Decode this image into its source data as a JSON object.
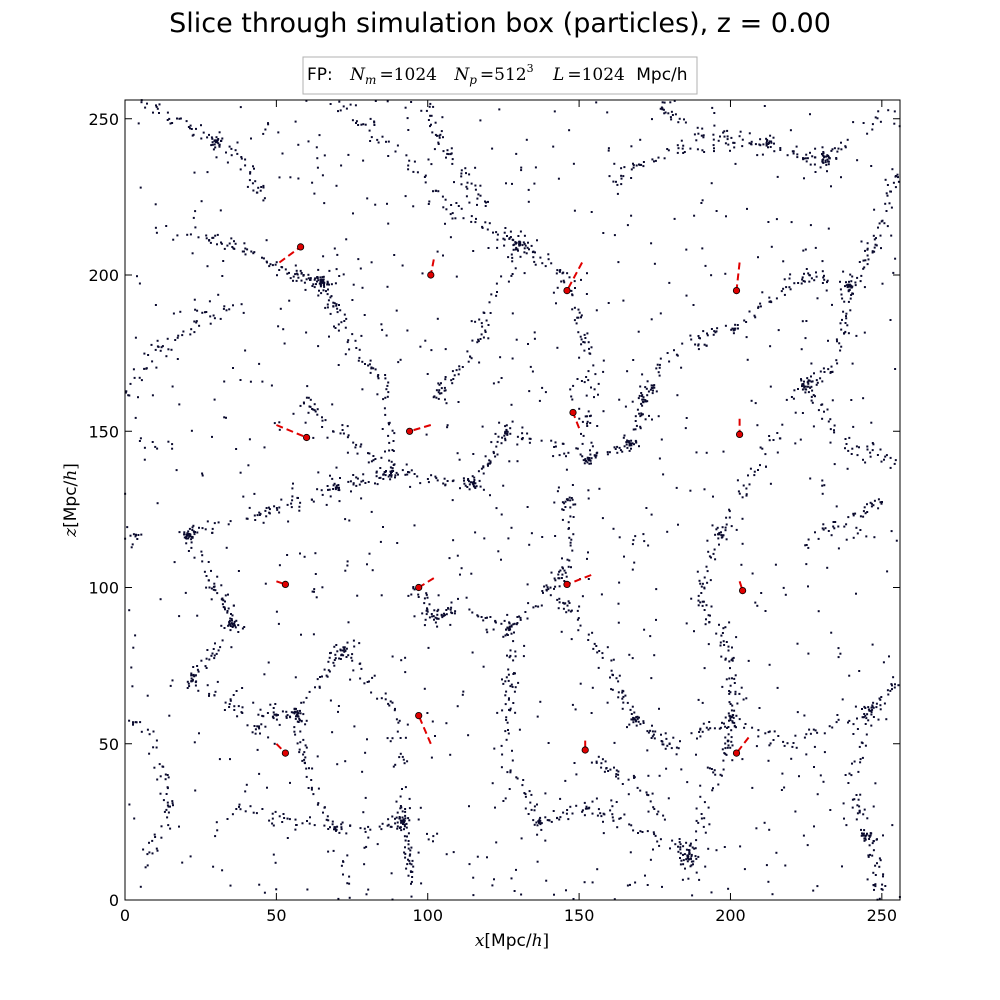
{
  "chart_data": {
    "type": "scatter",
    "title": "Slice through simulation box (particles), z = 0.00",
    "legend": {
      "placement": "top-center",
      "label": "FP:",
      "parts": {
        "nm_symbol": "N",
        "nm_sub": "m",
        "nm_value": "=1024",
        "np_symbol": "N",
        "np_sub": "p",
        "np_value": "=512",
        "np_exp": "3",
        "l_symbol": "L",
        "l_value": "=1024",
        "l_unit": "Mpc/h"
      }
    },
    "xlabel": {
      "var": "x",
      "text": "[Mpc/",
      "h": "h",
      "close": "]"
    },
    "ylabel": {
      "var": "z",
      "text": "[Mpc/",
      "h": "h",
      "close": "]"
    },
    "xlim": [
      0,
      256
    ],
    "ylim": [
      0,
      256
    ],
    "xticks": [
      "0",
      "50",
      "100",
      "150",
      "200",
      "250"
    ],
    "yticks": [
      "0",
      "50",
      "100",
      "150",
      "200",
      "250"
    ],
    "grid": false,
    "colors": {
      "particles": "#0a0a2e",
      "halos": "#e00000",
      "halo_edge": "#000000"
    },
    "particle_clusters": [
      {
        "x": 30,
        "y": 243,
        "n": 30,
        "s": 3.5
      },
      {
        "x": 65,
        "y": 198,
        "n": 45,
        "s": 4
      },
      {
        "x": 130,
        "y": 210,
        "n": 30,
        "s": 5
      },
      {
        "x": 21,
        "y": 117,
        "n": 30,
        "s": 2.5
      },
      {
        "x": 153,
        "y": 141,
        "n": 15,
        "s": 1.5
      },
      {
        "x": 186,
        "y": 14,
        "n": 45,
        "s": 6
      },
      {
        "x": 92,
        "y": 25,
        "n": 35,
        "s": 4
      },
      {
        "x": 57,
        "y": 59,
        "n": 25,
        "s": 4
      },
      {
        "x": 245,
        "y": 20,
        "n": 20,
        "s": 4
      },
      {
        "x": 168,
        "y": 58,
        "n": 15,
        "s": 3
      },
      {
        "x": 240,
        "y": 196,
        "n": 25,
        "s": 4
      },
      {
        "x": 88,
        "y": 137,
        "n": 20,
        "s": 3
      },
      {
        "x": 115,
        "y": 133,
        "n": 20,
        "s": 4
      },
      {
        "x": 126,
        "y": 150,
        "n": 15,
        "s": 3
      },
      {
        "x": 167,
        "y": 146,
        "n": 20,
        "s": 3
      },
      {
        "x": 36,
        "y": 88,
        "n": 20,
        "s": 3
      },
      {
        "x": 72,
        "y": 80,
        "n": 20,
        "s": 3
      },
      {
        "x": 127,
        "y": 87,
        "n": 15,
        "s": 3
      },
      {
        "x": 196,
        "y": 117,
        "n": 15,
        "s": 3
      },
      {
        "x": 212,
        "y": 242,
        "n": 12,
        "s": 3
      },
      {
        "x": 171,
        "y": 160,
        "n": 15,
        "s": 3
      },
      {
        "x": 22,
        "y": 70,
        "n": 15,
        "s": 4
      },
      {
        "x": 201,
        "y": 58,
        "n": 15,
        "s": 4
      },
      {
        "x": 147,
        "y": 128,
        "n": 15,
        "s": 4
      },
      {
        "x": 232,
        "y": 238,
        "n": 15,
        "s": 4
      },
      {
        "x": 246,
        "y": 60,
        "n": 12,
        "s": 3
      },
      {
        "x": 104,
        "y": 162,
        "n": 12,
        "s": 3
      },
      {
        "x": 70,
        "y": 132,
        "n": 12,
        "s": 3
      },
      {
        "x": 103,
        "y": 90,
        "n": 12,
        "s": 3
      },
      {
        "x": 224,
        "y": 165,
        "n": 12,
        "s": 3
      },
      {
        "x": 44,
        "y": 55,
        "n": 12,
        "s": 3
      },
      {
        "x": 137,
        "y": 25,
        "n": 12,
        "s": 3
      },
      {
        "x": 4,
        "y": 117,
        "n": 10,
        "s": 3
      }
    ],
    "particle_filaments": [
      {
        "pts": [
          [
            10,
            215
          ],
          [
            35,
            210
          ],
          [
            55,
            200
          ],
          [
            65,
            198
          ]
        ],
        "n": 80
      },
      {
        "pts": [
          [
            65,
            198
          ],
          [
            75,
            180
          ],
          [
            85,
            165
          ],
          [
            88,
            137
          ]
        ],
        "n": 80
      },
      {
        "pts": [
          [
            88,
            137
          ],
          [
            70,
            132
          ],
          [
            50,
            125
          ],
          [
            21,
            117
          ]
        ],
        "n": 80
      },
      {
        "pts": [
          [
            21,
            117
          ],
          [
            30,
            100
          ],
          [
            36,
            88
          ],
          [
            22,
            70
          ]
        ],
        "n": 70
      },
      {
        "pts": [
          [
            22,
            70
          ],
          [
            40,
            60
          ],
          [
            57,
            59
          ],
          [
            72,
            80
          ]
        ],
        "n": 70
      },
      {
        "pts": [
          [
            72,
            80
          ],
          [
            90,
            60
          ],
          [
            92,
            25
          ],
          [
            95,
            5
          ]
        ],
        "n": 80
      },
      {
        "pts": [
          [
            57,
            59
          ],
          [
            60,
            40
          ],
          [
            70,
            20
          ],
          [
            75,
            0
          ]
        ],
        "n": 60
      },
      {
        "pts": [
          [
            88,
            137
          ],
          [
            115,
            133
          ],
          [
            126,
            150
          ],
          [
            153,
            141
          ]
        ],
        "n": 80
      },
      {
        "pts": [
          [
            153,
            141
          ],
          [
            167,
            146
          ],
          [
            171,
            160
          ],
          [
            180,
            175
          ]
        ],
        "n": 70
      },
      {
        "pts": [
          [
            130,
            210
          ],
          [
            145,
            200
          ],
          [
            153,
            175
          ],
          [
            153,
            141
          ]
        ],
        "n": 80
      },
      {
        "pts": [
          [
            130,
            210
          ],
          [
            110,
            220
          ],
          [
            90,
            240
          ],
          [
            70,
            256
          ]
        ],
        "n": 70
      },
      {
        "pts": [
          [
            180,
            175
          ],
          [
            205,
            185
          ],
          [
            225,
            200
          ],
          [
            240,
            196
          ]
        ],
        "n": 80
      },
      {
        "pts": [
          [
            240,
            196
          ],
          [
            250,
            215
          ],
          [
            255,
            235
          ]
        ],
        "n": 50
      },
      {
        "pts": [
          [
            240,
            196
          ],
          [
            235,
            170
          ],
          [
            224,
            165
          ],
          [
            210,
            140
          ]
        ],
        "n": 70
      },
      {
        "pts": [
          [
            210,
            140
          ],
          [
            196,
            117
          ],
          [
            190,
            95
          ],
          [
            200,
            80
          ]
        ],
        "n": 70
      },
      {
        "pts": [
          [
            200,
            80
          ],
          [
            201,
            58
          ],
          [
            196,
            40
          ],
          [
            186,
            14
          ]
        ],
        "n": 80
      },
      {
        "pts": [
          [
            186,
            14
          ],
          [
            165,
            25
          ],
          [
            150,
            30
          ],
          [
            137,
            25
          ]
        ],
        "n": 60
      },
      {
        "pts": [
          [
            137,
            25
          ],
          [
            125,
            45
          ],
          [
            127,
            65
          ],
          [
            127,
            87
          ]
        ],
        "n": 70
      },
      {
        "pts": [
          [
            127,
            87
          ],
          [
            140,
            100
          ],
          [
            147,
            110
          ],
          [
            147,
            128
          ]
        ],
        "n": 60
      },
      {
        "pts": [
          [
            127,
            87
          ],
          [
            110,
            95
          ],
          [
            103,
            90
          ],
          [
            95,
            100
          ]
        ],
        "n": 50
      },
      {
        "pts": [
          [
            168,
            58
          ],
          [
            180,
            50
          ],
          [
            201,
            58
          ]
        ],
        "n": 50
      },
      {
        "pts": [
          [
            168,
            58
          ],
          [
            160,
            75
          ],
          [
            150,
            90
          ],
          [
            140,
            100
          ]
        ],
        "n": 50
      },
      {
        "pts": [
          [
            201,
            58
          ],
          [
            220,
            50
          ],
          [
            246,
            60
          ],
          [
            256,
            70
          ]
        ],
        "n": 60
      },
      {
        "pts": [
          [
            246,
            60
          ],
          [
            240,
            40
          ],
          [
            245,
            20
          ],
          [
            250,
            0
          ]
        ],
        "n": 60
      },
      {
        "pts": [
          [
            220,
            110
          ],
          [
            235,
            120
          ],
          [
            250,
            128
          ]
        ],
        "n": 40
      },
      {
        "pts": [
          [
            224,
            165
          ],
          [
            240,
            145
          ],
          [
            255,
            140
          ]
        ],
        "n": 45
      },
      {
        "pts": [
          [
            212,
            242
          ],
          [
            230,
            235
          ],
          [
            232,
            238
          ],
          [
            250,
            250
          ]
        ],
        "n": 60
      },
      {
        "pts": [
          [
            160,
            230
          ],
          [
            180,
            240
          ],
          [
            212,
            242
          ]
        ],
        "n": 55
      },
      {
        "pts": [
          [
            30,
            243
          ],
          [
            15,
            250
          ],
          [
            5,
            256
          ]
        ],
        "n": 30
      },
      {
        "pts": [
          [
            30,
            243
          ],
          [
            40,
            235
          ],
          [
            45,
            225
          ]
        ],
        "n": 30
      },
      {
        "pts": [
          [
            0,
            160
          ],
          [
            10,
            175
          ],
          [
            25,
            185
          ],
          [
            35,
            190
          ]
        ],
        "n": 50
      },
      {
        "pts": [
          [
            0,
            60
          ],
          [
            10,
            50
          ],
          [
            15,
            30
          ],
          [
            5,
            10
          ]
        ],
        "n": 50
      },
      {
        "pts": [
          [
            36,
            30
          ],
          [
            55,
            25
          ],
          [
            75,
            22
          ],
          [
            92,
            25
          ]
        ],
        "n": 50
      },
      {
        "pts": [
          [
            104,
            162
          ],
          [
            115,
            175
          ],
          [
            120,
            190
          ],
          [
            130,
            210
          ]
        ],
        "n": 50
      },
      {
        "pts": [
          [
            58,
            160
          ],
          [
            70,
            150
          ],
          [
            88,
            137
          ]
        ],
        "n": 40
      },
      {
        "pts": [
          [
            100,
            256
          ],
          [
            105,
            240
          ],
          [
            115,
            228
          ],
          [
            130,
            210
          ]
        ],
        "n": 55
      },
      {
        "pts": [
          [
            175,
            256
          ],
          [
            190,
            245
          ],
          [
            212,
            242
          ]
        ],
        "n": 40
      },
      {
        "pts": [
          [
            155,
            45
          ],
          [
            165,
            40
          ],
          [
            175,
            30
          ],
          [
            186,
            14
          ]
        ],
        "n": 40
      }
    ],
    "background_particles": 1000,
    "halos": [
      {
        "x": 58,
        "y": 209,
        "trail": [
          [
            51,
            204
          ],
          [
            58,
            209
          ]
        ]
      },
      {
        "x": 101,
        "y": 200,
        "trail": [
          [
            102,
            205
          ],
          [
            101,
            200
          ]
        ]
      },
      {
        "x": 146,
        "y": 195,
        "trail": [
          [
            151,
            204
          ],
          [
            146,
            195
          ]
        ]
      },
      {
        "x": 202,
        "y": 195,
        "trail": [
          [
            203,
            204
          ],
          [
            202,
            195
          ]
        ]
      },
      {
        "x": 60,
        "y": 148,
        "trail": [
          [
            50,
            152
          ],
          [
            60,
            148
          ]
        ]
      },
      {
        "x": 94,
        "y": 150,
        "trail": [
          [
            101,
            152
          ],
          [
            94,
            150
          ]
        ]
      },
      {
        "x": 148,
        "y": 156,
        "trail": [
          [
            150,
            151
          ],
          [
            148,
            156
          ]
        ]
      },
      {
        "x": 203,
        "y": 149,
        "trail": [
          [
            203,
            154
          ],
          [
            203,
            149
          ]
        ]
      },
      {
        "x": 53,
        "y": 101,
        "trail": [
          [
            50,
            102
          ],
          [
            53,
            101
          ]
        ]
      },
      {
        "x": 97,
        "y": 100,
        "trail": [
          [
            102,
            103
          ],
          [
            97,
            100
          ]
        ]
      },
      {
        "x": 146,
        "y": 101,
        "trail": [
          [
            154,
            104
          ],
          [
            146,
            101
          ]
        ]
      },
      {
        "x": 204,
        "y": 99,
        "trail": [
          [
            203,
            102
          ],
          [
            204,
            99
          ]
        ]
      },
      {
        "x": 53,
        "y": 47,
        "trail": [
          [
            50,
            50
          ],
          [
            53,
            47
          ]
        ]
      },
      {
        "x": 97,
        "y": 59,
        "trail": [
          [
            101,
            50
          ],
          [
            97,
            59
          ]
        ]
      },
      {
        "x": 152,
        "y": 48,
        "trail": [
          [
            152,
            51
          ],
          [
            152,
            48
          ]
        ]
      },
      {
        "x": 202,
        "y": 47,
        "trail": [
          [
            206,
            52
          ],
          [
            202,
            47
          ]
        ]
      }
    ]
  }
}
